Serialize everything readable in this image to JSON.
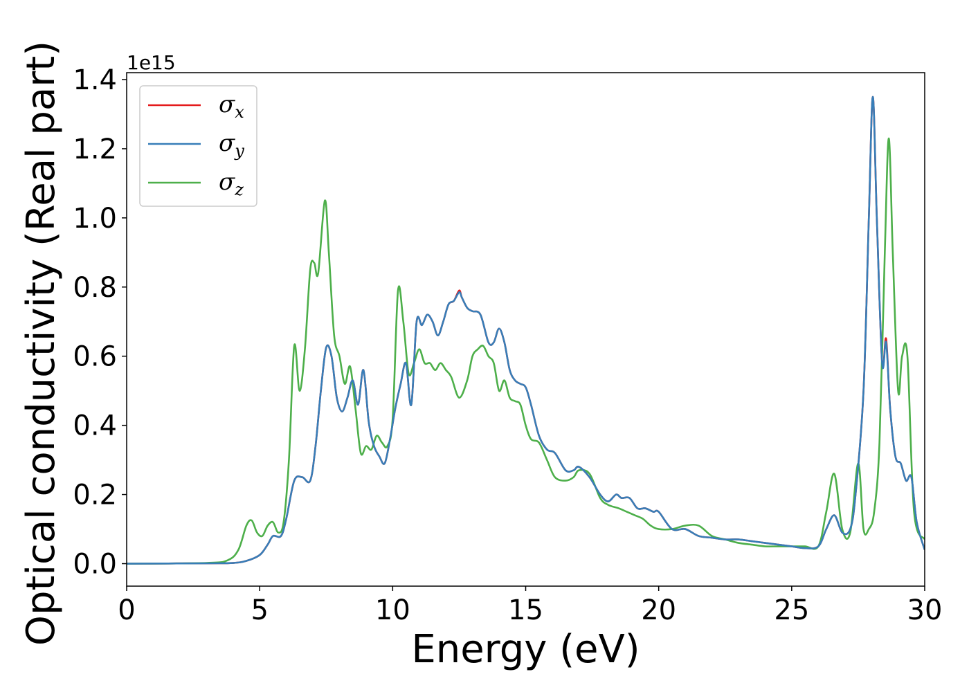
{
  "chart_data": {
    "type": "line",
    "title": "",
    "xlabel": "Energy (eV)",
    "ylabel": "Optical conductivity (Real part)",
    "y_offset_text": "1e15",
    "xlim": [
      0,
      30
    ],
    "ylim": [
      -0.065,
      1.42
    ],
    "xticks": [
      0,
      5,
      10,
      15,
      20,
      25,
      30
    ],
    "xtick_labels": [
      "0",
      "5",
      "10",
      "15",
      "20",
      "25",
      "30"
    ],
    "yticks": [
      0.0,
      0.2,
      0.4,
      0.6,
      0.8,
      1.0,
      1.2,
      1.4
    ],
    "ytick_labels": [
      "0.0",
      "0.2",
      "0.4",
      "0.6",
      "0.8",
      "1.0",
      "1.2",
      "1.4"
    ],
    "grid": false,
    "legend_position": "top-left",
    "series": [
      {
        "name": "σx",
        "legend_base": "σ",
        "legend_sub": "x",
        "color": "#e41a1c",
        "x": [
          0,
          3,
          4,
          4.5,
          5,
          5.3,
          5.5,
          5.8,
          6,
          6.3,
          6.6,
          6.9,
          7.1,
          7.3,
          7.5,
          7.7,
          7.9,
          8.1,
          8.3,
          8.5,
          8.7,
          8.9,
          9.1,
          9.3,
          9.5,
          9.7,
          9.9,
          10.1,
          10.3,
          10.5,
          10.7,
          10.9,
          11.1,
          11.3,
          11.5,
          11.7,
          11.9,
          12.1,
          12.3,
          12.5,
          12.6,
          12.8,
          13,
          13.3,
          13.6,
          13.8,
          14,
          14.2,
          14.4,
          14.6,
          14.8,
          15,
          15.2,
          15.5,
          15.8,
          16.1,
          16.5,
          16.8,
          17,
          17.4,
          17.8,
          18.1,
          18.4,
          18.6,
          18.9,
          19.2,
          19.5,
          19.8,
          20,
          20.5,
          21,
          21.5,
          22,
          22.5,
          23,
          23.5,
          24,
          24.5,
          25,
          25.5,
          26,
          26.3,
          26.6,
          26.9,
          27.2,
          27.4,
          27.7,
          27.9,
          28.05,
          28.2,
          28.4,
          28.55,
          28.7,
          28.9,
          29.1,
          29.3,
          29.5,
          29.7,
          30
        ],
        "y": [
          0,
          0.001,
          0.002,
          0.008,
          0.025,
          0.055,
          0.08,
          0.08,
          0.13,
          0.24,
          0.25,
          0.24,
          0.34,
          0.5,
          0.625,
          0.6,
          0.48,
          0.44,
          0.48,
          0.53,
          0.46,
          0.56,
          0.41,
          0.34,
          0.31,
          0.29,
          0.36,
          0.45,
          0.52,
          0.58,
          0.46,
          0.7,
          0.69,
          0.72,
          0.7,
          0.66,
          0.7,
          0.75,
          0.76,
          0.79,
          0.77,
          0.74,
          0.73,
          0.72,
          0.64,
          0.64,
          0.68,
          0.64,
          0.56,
          0.53,
          0.52,
          0.51,
          0.46,
          0.37,
          0.33,
          0.32,
          0.27,
          0.27,
          0.28,
          0.25,
          0.2,
          0.18,
          0.2,
          0.19,
          0.19,
          0.16,
          0.16,
          0.15,
          0.15,
          0.1,
          0.1,
          0.08,
          0.075,
          0.07,
          0.07,
          0.065,
          0.06,
          0.055,
          0.05,
          0.045,
          0.05,
          0.1,
          0.14,
          0.09,
          0.1,
          0.2,
          0.5,
          1.0,
          1.35,
          1.0,
          0.58,
          0.65,
          0.45,
          0.31,
          0.29,
          0.24,
          0.25,
          0.12,
          0.04
        ]
      },
      {
        "name": "σy",
        "legend_base": "σ",
        "legend_sub": "y",
        "color": "#377eb8",
        "x": [
          0,
          3,
          4,
          4.5,
          5,
          5.3,
          5.5,
          5.8,
          6,
          6.3,
          6.6,
          6.9,
          7.1,
          7.3,
          7.5,
          7.7,
          7.9,
          8.1,
          8.3,
          8.5,
          8.7,
          8.9,
          9.1,
          9.3,
          9.5,
          9.7,
          9.9,
          10.1,
          10.3,
          10.5,
          10.7,
          10.9,
          11.1,
          11.3,
          11.5,
          11.7,
          11.9,
          12.1,
          12.3,
          12.5,
          12.6,
          12.8,
          13,
          13.3,
          13.6,
          13.8,
          14,
          14.2,
          14.4,
          14.6,
          14.8,
          15,
          15.2,
          15.5,
          15.8,
          16.1,
          16.5,
          16.8,
          17,
          17.4,
          17.8,
          18.1,
          18.4,
          18.6,
          18.9,
          19.2,
          19.5,
          19.8,
          20,
          20.5,
          21,
          21.5,
          22,
          22.5,
          23,
          23.5,
          24,
          24.5,
          25,
          25.5,
          26,
          26.3,
          26.6,
          26.9,
          27.2,
          27.4,
          27.7,
          27.9,
          28.05,
          28.2,
          28.4,
          28.55,
          28.7,
          28.9,
          29.1,
          29.3,
          29.5,
          29.7,
          30
        ],
        "y": [
          0,
          0.001,
          0.002,
          0.008,
          0.025,
          0.055,
          0.08,
          0.08,
          0.13,
          0.24,
          0.25,
          0.24,
          0.34,
          0.5,
          0.625,
          0.6,
          0.48,
          0.44,
          0.48,
          0.53,
          0.46,
          0.56,
          0.41,
          0.34,
          0.31,
          0.29,
          0.36,
          0.45,
          0.52,
          0.58,
          0.46,
          0.7,
          0.69,
          0.72,
          0.7,
          0.66,
          0.7,
          0.75,
          0.76,
          0.785,
          0.77,
          0.74,
          0.73,
          0.72,
          0.64,
          0.64,
          0.68,
          0.64,
          0.56,
          0.53,
          0.52,
          0.51,
          0.46,
          0.37,
          0.33,
          0.32,
          0.27,
          0.27,
          0.28,
          0.25,
          0.2,
          0.18,
          0.2,
          0.19,
          0.19,
          0.16,
          0.16,
          0.15,
          0.15,
          0.1,
          0.1,
          0.08,
          0.075,
          0.07,
          0.07,
          0.065,
          0.06,
          0.055,
          0.05,
          0.045,
          0.05,
          0.1,
          0.14,
          0.09,
          0.1,
          0.2,
          0.5,
          1.0,
          1.35,
          1.0,
          0.58,
          0.64,
          0.45,
          0.31,
          0.29,
          0.24,
          0.25,
          0.12,
          0.04
        ]
      },
      {
        "name": "σz",
        "legend_base": "σ",
        "legend_sub": "z",
        "color": "#4daf4a",
        "x": [
          0,
          3,
          3.8,
          4.2,
          4.5,
          4.7,
          4.9,
          5.1,
          5.3,
          5.5,
          5.7,
          5.9,
          6.1,
          6.3,
          6.5,
          6.7,
          6.9,
          7.05,
          7.2,
          7.45,
          7.6,
          7.8,
          8.0,
          8.2,
          8.4,
          8.6,
          8.8,
          9.0,
          9.2,
          9.4,
          9.6,
          9.8,
          10.0,
          10.2,
          10.4,
          10.6,
          10.8,
          11.0,
          11.2,
          11.4,
          11.6,
          11.8,
          12.0,
          12.2,
          12.5,
          12.8,
          13.0,
          13.2,
          13.4,
          13.6,
          13.8,
          14.0,
          14.2,
          14.4,
          14.6,
          14.8,
          15.0,
          15.2,
          15.5,
          15.8,
          16.1,
          16.5,
          16.8,
          17.0,
          17.4,
          17.8,
          18.1,
          18.5,
          18.8,
          19.1,
          19.4,
          19.7,
          20.0,
          20.5,
          21.0,
          21.5,
          22.0,
          22.5,
          23.0,
          23.5,
          24.0,
          24.5,
          25.0,
          25.5,
          26.0,
          26.3,
          26.6,
          26.9,
          27.2,
          27.5,
          27.7,
          27.9,
          28.1,
          28.3,
          28.5,
          28.65,
          28.8,
          29.0,
          29.15,
          29.35,
          29.6,
          30
        ],
        "y": [
          0,
          0.002,
          0.01,
          0.04,
          0.11,
          0.125,
          0.09,
          0.08,
          0.11,
          0.12,
          0.09,
          0.12,
          0.3,
          0.63,
          0.5,
          0.62,
          0.85,
          0.87,
          0.84,
          1.05,
          0.9,
          0.66,
          0.6,
          0.52,
          0.57,
          0.45,
          0.32,
          0.34,
          0.33,
          0.37,
          0.35,
          0.34,
          0.42,
          0.79,
          0.7,
          0.55,
          0.58,
          0.62,
          0.58,
          0.58,
          0.56,
          0.58,
          0.56,
          0.54,
          0.48,
          0.53,
          0.6,
          0.62,
          0.63,
          0.6,
          0.58,
          0.5,
          0.53,
          0.48,
          0.47,
          0.46,
          0.4,
          0.36,
          0.35,
          0.3,
          0.25,
          0.24,
          0.25,
          0.27,
          0.26,
          0.19,
          0.17,
          0.16,
          0.15,
          0.14,
          0.13,
          0.11,
          0.1,
          0.1,
          0.11,
          0.11,
          0.08,
          0.07,
          0.06,
          0.055,
          0.05,
          0.05,
          0.05,
          0.05,
          0.05,
          0.15,
          0.26,
          0.1,
          0.09,
          0.29,
          0.1,
          0.1,
          0.15,
          0.35,
          0.9,
          1.23,
          0.9,
          0.5,
          0.6,
          0.6,
          0.15,
          0.07
        ]
      }
    ]
  }
}
